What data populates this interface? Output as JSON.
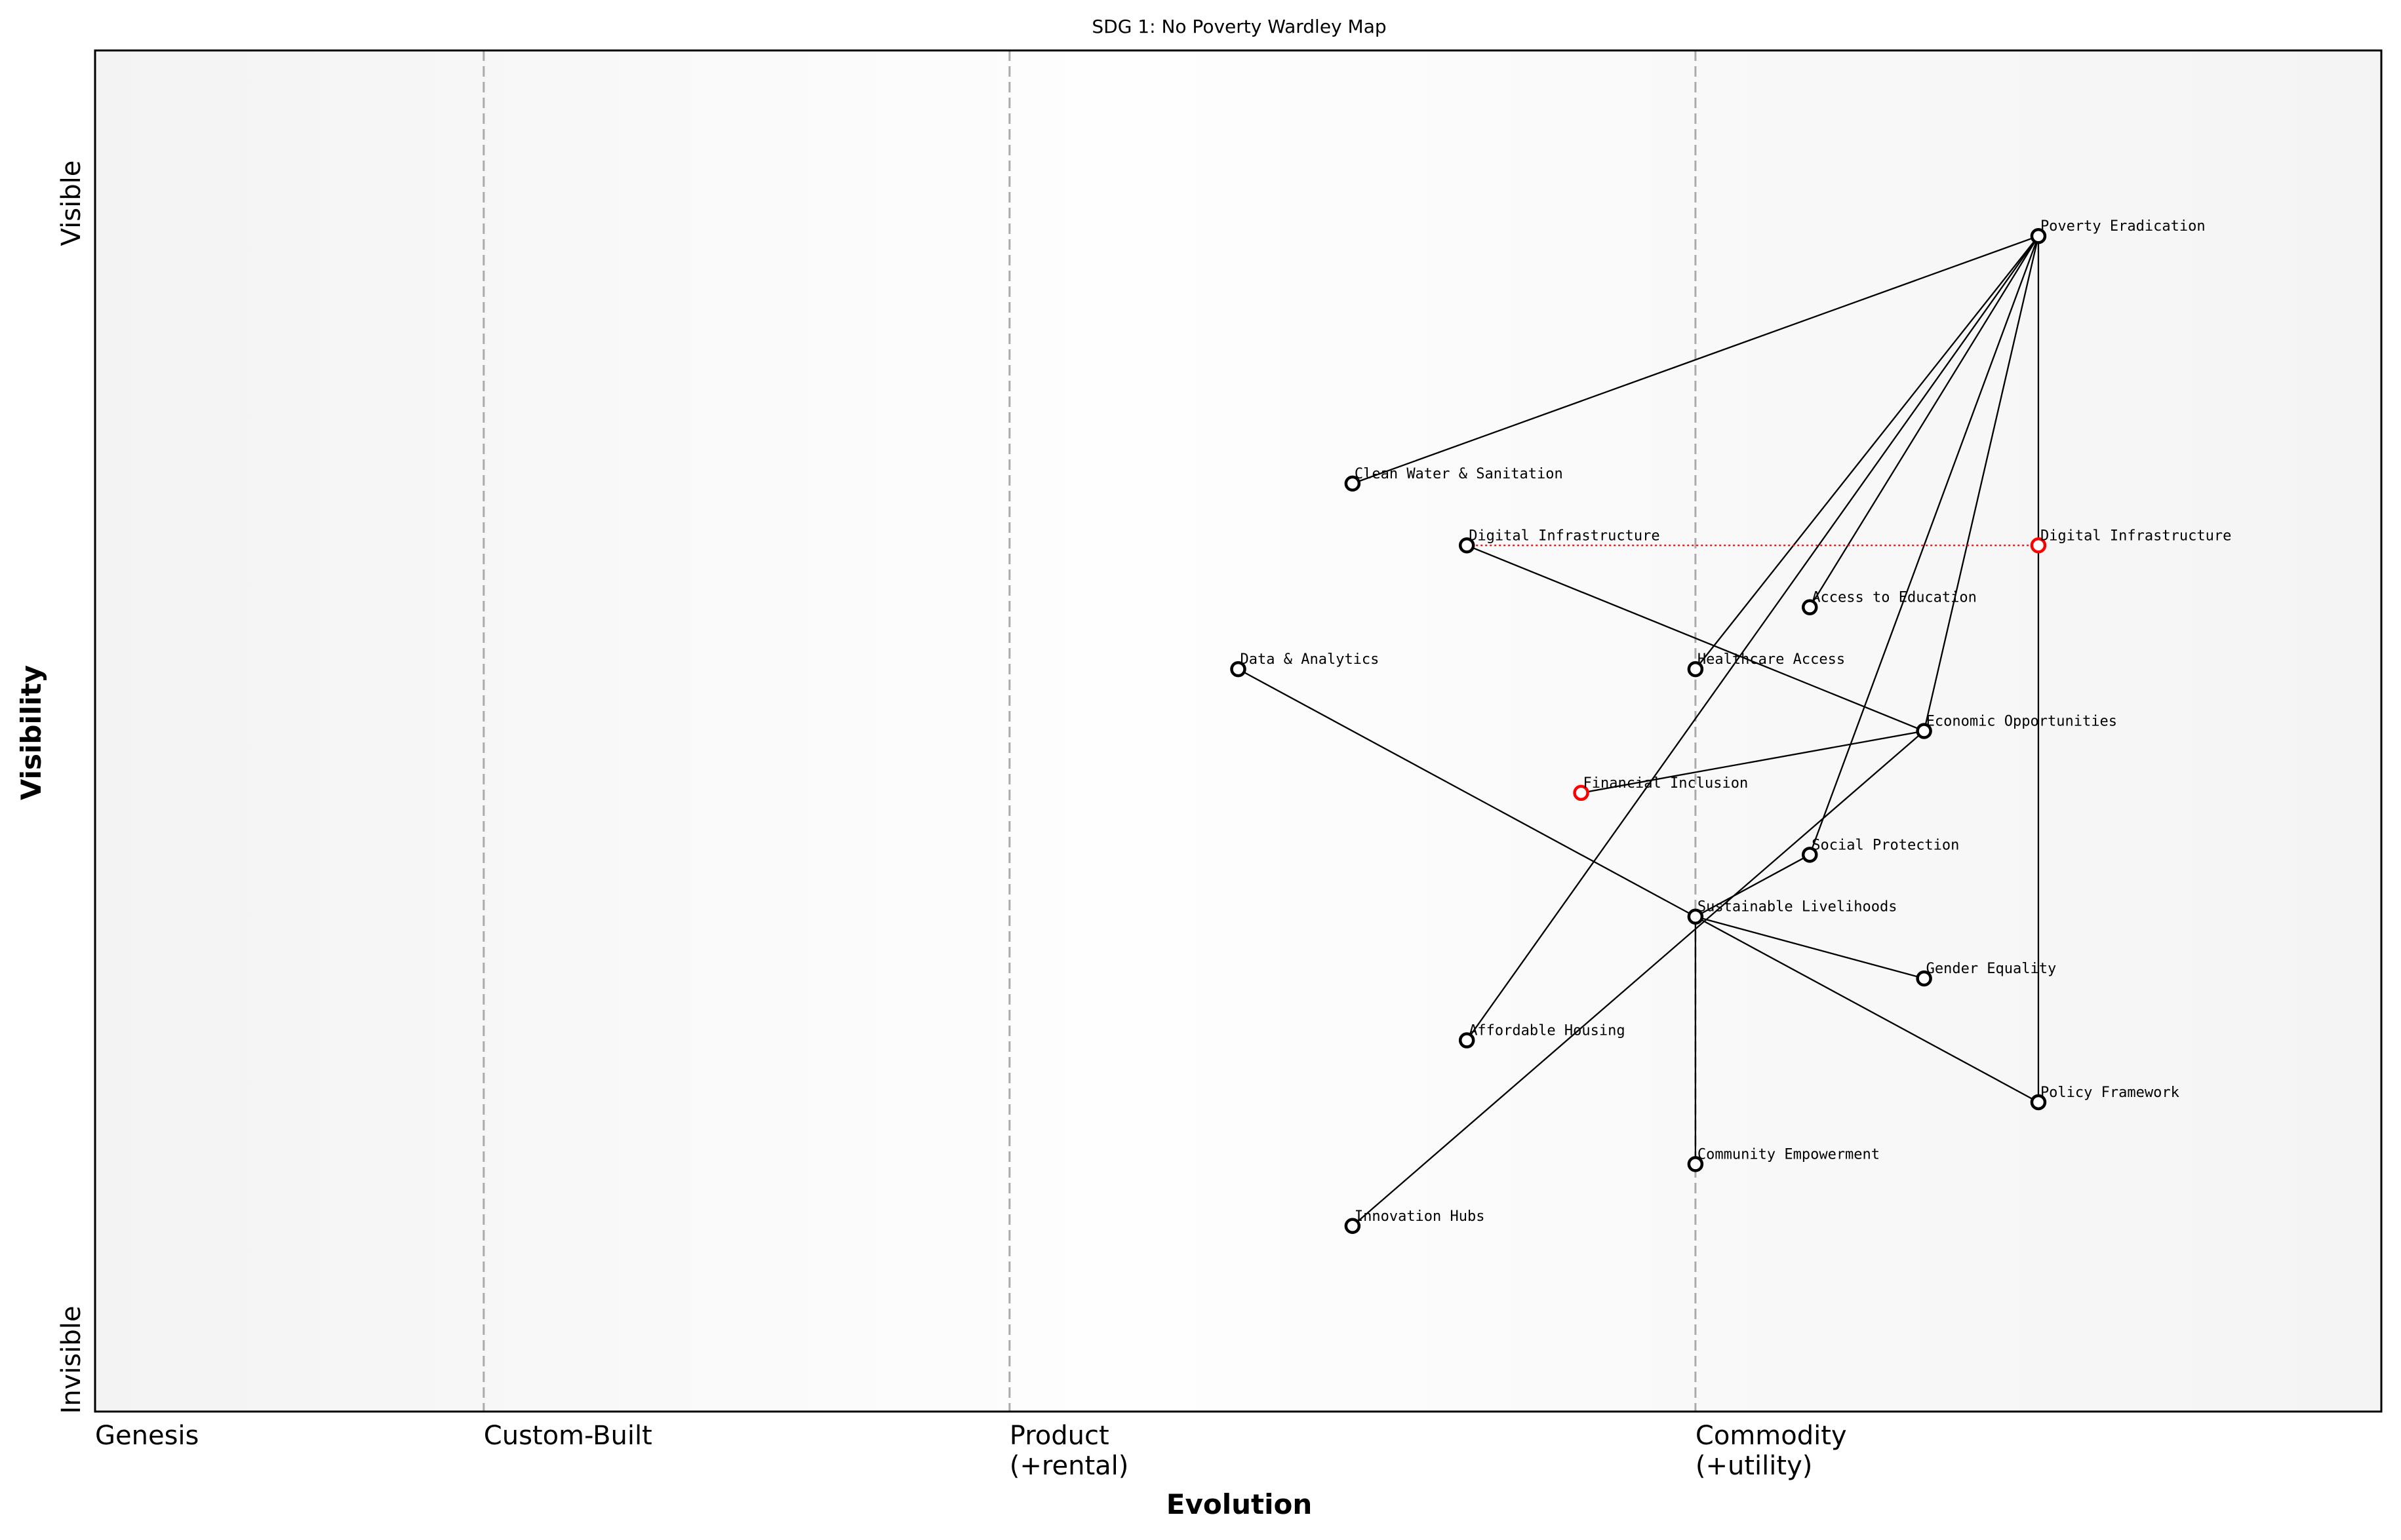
{
  "title": "SDG 1: No Poverty Wardley Map",
  "xlabel": "Evolution",
  "ylabel": "Visibility",
  "y_top_label": "Visible",
  "y_bottom_label": "Invisible",
  "stages": [
    {
      "label": "Genesis",
      "x": 0.0
    },
    {
      "label": "Custom-Built",
      "x": 0.17
    },
    {
      "label": "Product\n(+rental)",
      "x": 0.4
    },
    {
      "label": "Commodity\n(+utility)",
      "x": 0.7
    }
  ],
  "chart_data": {
    "type": "scatter",
    "title": "SDG 1: No Poverty Wardley Map",
    "xlabel": "Evolution",
    "ylabel": "Visibility",
    "xlim": [
      0,
      1
    ],
    "ylim": [
      0,
      1.1
    ],
    "grid": false,
    "components": [
      {
        "name": "Poverty Eradication",
        "x": 0.85,
        "y": 0.95
      },
      {
        "name": "Clean Water & Sanitation",
        "x": 0.55,
        "y": 0.75
      },
      {
        "name": "Digital Infrastructure",
        "x": 0.6,
        "y": 0.7
      },
      {
        "name": "Digital Infrastructure",
        "x": 0.85,
        "y": 0.7,
        "color": "#ff0000",
        "evolved": true
      },
      {
        "name": "Access to Education",
        "x": 0.75,
        "y": 0.65
      },
      {
        "name": "Data & Analytics",
        "x": 0.5,
        "y": 0.6
      },
      {
        "name": "Healthcare Access",
        "x": 0.7,
        "y": 0.6
      },
      {
        "name": "Economic Opportunities",
        "x": 0.8,
        "y": 0.55
      },
      {
        "name": "Financial Inclusion",
        "x": 0.65,
        "y": 0.5,
        "color": "#ff0000"
      },
      {
        "name": "Social Protection",
        "x": 0.75,
        "y": 0.45
      },
      {
        "name": "Sustainable Livelihoods",
        "x": 0.7,
        "y": 0.4
      },
      {
        "name": "Gender Equality",
        "x": 0.8,
        "y": 0.35
      },
      {
        "name": "Affordable Housing",
        "x": 0.6,
        "y": 0.3
      },
      {
        "name": "Policy Framework",
        "x": 0.85,
        "y": 0.25
      },
      {
        "name": "Community Empowerment",
        "x": 0.7,
        "y": 0.2
      },
      {
        "name": "Innovation Hubs",
        "x": 0.55,
        "y": 0.15
      }
    ],
    "links": [
      [
        0,
        1
      ],
      [
        0,
        6
      ],
      [
        0,
        12
      ],
      [
        0,
        4
      ],
      [
        0,
        9
      ],
      [
        0,
        7
      ],
      [
        0,
        13
      ],
      [
        2,
        7
      ],
      [
        8,
        7
      ],
      [
        7,
        15
      ],
      [
        5,
        10
      ],
      [
        10,
        9
      ],
      [
        10,
        11
      ],
      [
        10,
        13
      ],
      [
        10,
        14
      ]
    ],
    "evolution_links": [
      [
        2,
        3
      ]
    ],
    "colors": {
      "node": "#000000",
      "highlight": "#ff0000",
      "stage_line": "#aaaaaa"
    }
  }
}
